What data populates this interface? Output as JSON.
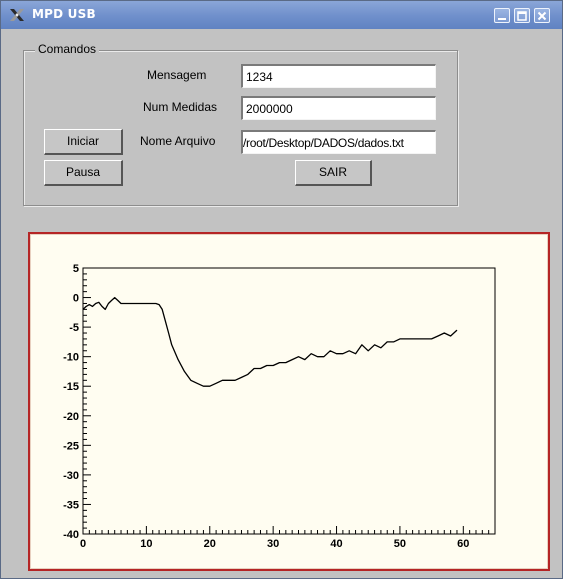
{
  "window": {
    "title": "MPD USB",
    "icon": "x-app-icon",
    "buttons": [
      "minimize-icon",
      "maximize-icon",
      "close-icon"
    ],
    "colors": {
      "titlebar": "#6f8fcb",
      "body": "#c2c2c2",
      "canvas_border": "#b52525",
      "canvas_bg": "#fffdf1"
    }
  },
  "comandos": {
    "group_label": "Comandos",
    "mensagem_label": "Mensagem",
    "mensagem_value": "1234",
    "num_medidas_label": "Num Medidas",
    "num_medidas_value": "2000000",
    "nome_arquivo_label": "Nome Arquivo",
    "nome_arquivo_value": "/root/Desktop/DADOS/dados.txt",
    "iniciar_label": "Iniciar",
    "pausa_label": "Pausa",
    "sair_label": "SAIR"
  },
  "chart_data": {
    "type": "line",
    "title": "",
    "xlabel": "",
    "ylabel": "",
    "xlim": [
      0,
      65
    ],
    "ylim": [
      -40,
      5
    ],
    "x_ticks": [
      0,
      10,
      20,
      30,
      40,
      50,
      60
    ],
    "y_ticks": [
      5,
      0,
      -5,
      -10,
      -15,
      -20,
      -25,
      -30,
      -35,
      -40
    ],
    "grid": false,
    "series": [
      {
        "color": "#000000",
        "x": [
          0,
          0.5,
          1,
          1.5,
          2,
          2.5,
          3,
          3.5,
          4,
          4.5,
          5,
          5.5,
          6,
          7,
          8,
          9,
          10,
          11,
          11.5,
          12,
          12.5,
          13,
          13.5,
          14,
          15,
          16,
          17,
          18,
          19,
          20,
          21,
          22,
          23,
          24,
          25,
          26,
          27,
          28,
          29,
          30,
          31,
          32,
          33,
          34,
          35,
          36,
          37,
          38,
          39,
          40,
          41,
          42,
          43,
          44,
          45,
          46,
          47,
          48,
          49,
          50,
          51,
          52,
          53,
          54,
          55,
          56,
          57,
          58,
          59
        ],
        "y": [
          -2,
          -1.5,
          -1.2,
          -1.5,
          -1,
          -0.8,
          -1.5,
          -2,
          -1,
          -0.5,
          0,
          -0.5,
          -1,
          -1,
          -1,
          -1,
          -1,
          -1,
          -1,
          -1.2,
          -2,
          -4,
          -6,
          -8,
          -10.5,
          -12.5,
          -14,
          -14.5,
          -15,
          -15,
          -14.5,
          -14,
          -14,
          -14,
          -13.5,
          -13,
          -12,
          -12,
          -11.5,
          -11.5,
          -11,
          -11,
          -10.5,
          -10,
          -10.5,
          -9.5,
          -10,
          -10,
          -9,
          -9.5,
          -9.5,
          -9,
          -9.5,
          -8,
          -9,
          -8,
          -8.5,
          -7.5,
          -7.5,
          -7,
          -7,
          -7,
          -7,
          -7,
          -7,
          -6.5,
          -6,
          -6.5,
          -5.5
        ]
      }
    ]
  }
}
